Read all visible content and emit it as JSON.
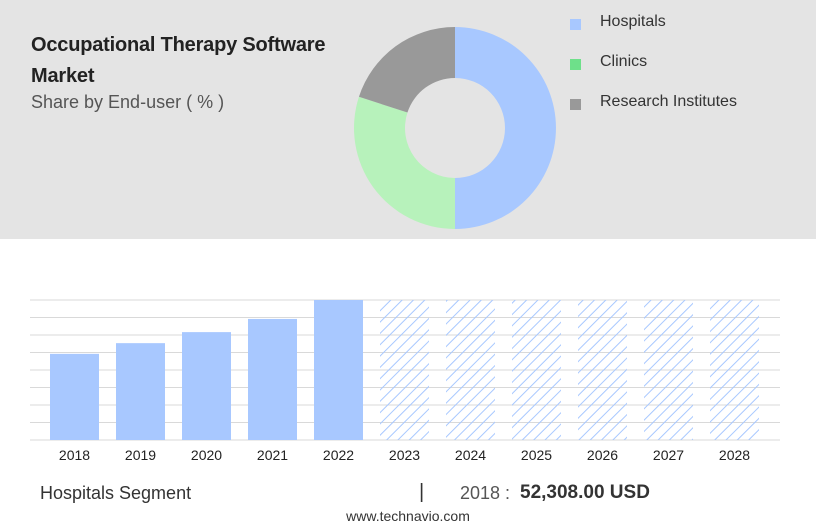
{
  "title": "Occupational Therapy Software Market",
  "subtitle": "Share by End-user ( % )",
  "legend": [
    {
      "label": "Hospitals",
      "color": "#a8c8ff"
    },
    {
      "label": "Clinics",
      "color": "#6ee08a"
    },
    {
      "label": "Research Institutes",
      "color": "#999999"
    }
  ],
  "footer": {
    "segment": "Hospitals Segment",
    "divider": "|",
    "year_label": "2018 :",
    "value": "52,308.00 USD",
    "url": "www.technavio.com"
  },
  "chart_data": [
    {
      "type": "pie",
      "title": "Share by End-user ( % )",
      "labels": [
        "Hospitals",
        "Clinics",
        "Research Institutes"
      ],
      "values": [
        50,
        30,
        20
      ],
      "colors": [
        "#a8c8ff",
        "#b7f2bb",
        "#999999"
      ]
    },
    {
      "type": "bar",
      "categories": [
        "2018",
        "2019",
        "2020",
        "2021",
        "2022",
        "2023",
        "2024",
        "2025",
        "2026",
        "2027",
        "2028"
      ],
      "values": [
        52308,
        58800,
        65500,
        73500,
        85000,
        85000,
        85000,
        85000,
        85000,
        85000,
        85000
      ],
      "forecast_from": "2023",
      "ylim": [
        0,
        85000
      ],
      "grid": true,
      "color": "#a8c8ff"
    }
  ]
}
